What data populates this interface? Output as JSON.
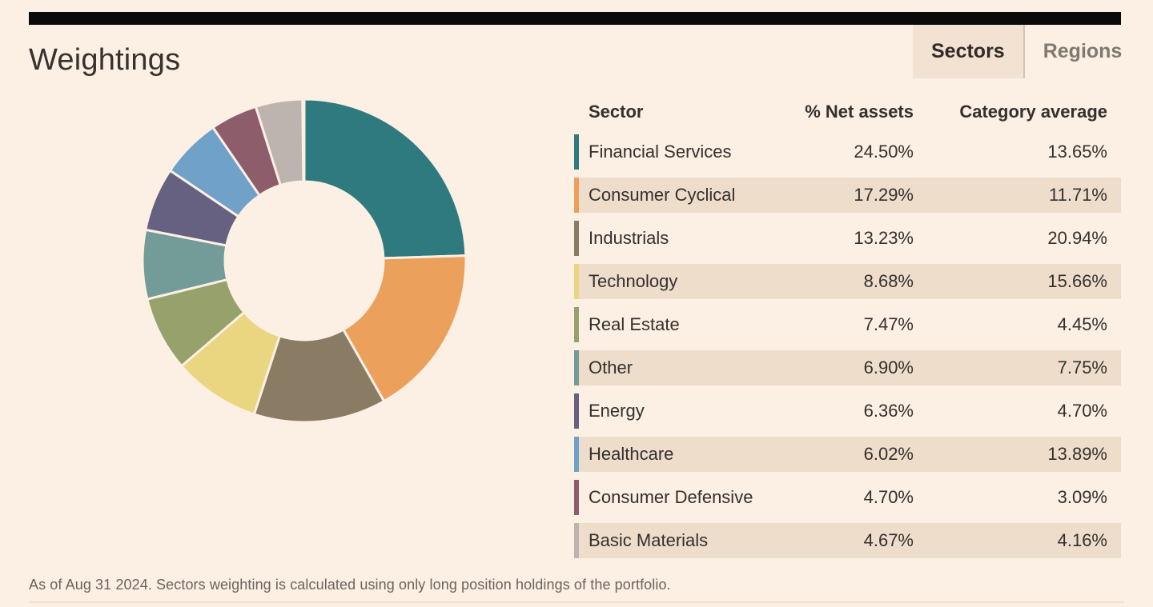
{
  "header": {
    "title": "Weightings",
    "tabs": [
      {
        "label": "Sectors",
        "active": true
      },
      {
        "label": "Regions",
        "active": false
      }
    ]
  },
  "table": {
    "columns": [
      "Sector",
      "% Net assets",
      "Category average"
    ],
    "rows": [
      {
        "sector": "Financial Services",
        "net_assets": "24.50%",
        "category_average": "13.65%",
        "color": "#2e7a7e"
      },
      {
        "sector": "Consumer Cyclical",
        "net_assets": "17.29%",
        "category_average": "11.71%",
        "color": "#eba05c"
      },
      {
        "sector": "Industrials",
        "net_assets": "13.23%",
        "category_average": "20.94%",
        "color": "#8a7c64"
      },
      {
        "sector": "Technology",
        "net_assets": "8.68%",
        "category_average": "15.66%",
        "color": "#ead581"
      },
      {
        "sector": "Real Estate",
        "net_assets": "7.47%",
        "category_average": "4.45%",
        "color": "#96a16b"
      },
      {
        "sector": "Other",
        "net_assets": "6.90%",
        "category_average": "7.75%",
        "color": "#739b98"
      },
      {
        "sector": "Energy",
        "net_assets": "6.36%",
        "category_average": "4.70%",
        "color": "#666180"
      },
      {
        "sector": "Healthcare",
        "net_assets": "6.02%",
        "category_average": "13.89%",
        "color": "#6fa1c9"
      },
      {
        "sector": "Consumer Defensive",
        "net_assets": "4.70%",
        "category_average": "3.09%",
        "color": "#8d5d6b"
      },
      {
        "sector": "Basic Materials",
        "net_assets": "4.67%",
        "category_average": "4.16%",
        "color": "#bdb4b0"
      }
    ]
  },
  "chart_data": {
    "type": "pie",
    "donut": true,
    "title": "Weightings",
    "categories": [
      "Financial Services",
      "Consumer Cyclical",
      "Industrials",
      "Technology",
      "Real Estate",
      "Other",
      "Energy",
      "Healthcare",
      "Consumer Defensive",
      "Basic Materials"
    ],
    "values": [
      24.5,
      17.29,
      13.23,
      8.68,
      7.47,
      6.9,
      6.36,
      6.02,
      4.7,
      4.67
    ],
    "category_average": [
      13.65,
      11.71,
      20.94,
      15.66,
      4.45,
      7.75,
      4.7,
      13.89,
      3.09,
      4.16
    ],
    "colors": [
      "#2e7a7e",
      "#eba05c",
      "#8a7c64",
      "#ead581",
      "#96a16b",
      "#739b98",
      "#666180",
      "#6fa1c9",
      "#8d5d6b",
      "#bdb4b0"
    ],
    "units": "%",
    "start_angle_deg": 0,
    "direction": "clockwise",
    "inner_radius_ratio": 0.49,
    "legend_position": "none"
  },
  "footer": {
    "note": "As of Aug 31 2024. Sectors weighting is calculated using only long position holdings of the portfolio."
  },
  "colors": {
    "background": "#fcefe3",
    "row_alt": "#efddcb",
    "tab_active_bg": "#f3e1d2",
    "text": "#33302e",
    "muted_text": "#6b645e",
    "top_bar": "#0a0a0a",
    "slice_gap": "#fcefe3"
  }
}
